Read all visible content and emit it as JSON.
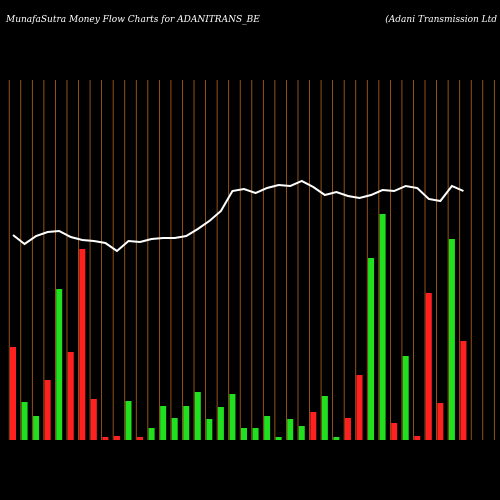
{
  "chart_data": {
    "type": "bar",
    "title": "MunafaSutra  Money Flow  Charts for ADANITRANS_BE",
    "subtitle": "(Adani Transmission Ltd",
    "categories": [
      null,
      null,
      null,
      null,
      null,
      null,
      null,
      null,
      null,
      null,
      null,
      null,
      null,
      null,
      null,
      null,
      null,
      null,
      null,
      null,
      null,
      null,
      null,
      null,
      null,
      null,
      null,
      null,
      null,
      null,
      null,
      null,
      null,
      null,
      null,
      null,
      null,
      null,
      null,
      null
    ],
    "values": [
      93,
      38,
      24,
      60,
      151,
      88,
      191,
      41,
      3,
      4,
      39,
      3,
      12,
      34,
      22,
      34,
      48,
      21,
      33,
      46,
      12,
      12,
      24,
      3,
      21,
      14,
      28,
      44,
      3,
      22,
      65,
      182,
      226,
      17,
      84,
      4,
      147,
      37,
      201,
      99
    ],
    "colors": [
      "#ff2020",
      "#20e020",
      "#20e020",
      "#ff2020",
      "#20e020",
      "#ff2020",
      "#ff2020",
      "#ff2020",
      "#ff2020",
      "#ff2020",
      "#20e020",
      "#ff2020",
      "#20e020",
      "#20e020",
      "#20e020",
      "#20e020",
      "#20e020",
      "#20e020",
      "#20e020",
      "#20e020",
      "#20e020",
      "#20e020",
      "#20e020",
      "#20e020",
      "#20e020",
      "#20e020",
      "#ff2020",
      "#20e020",
      "#20e020",
      "#ff2020",
      "#ff2020",
      "#20e020",
      "#20e020",
      "#ff2020",
      "#20e020",
      "#ff2020",
      "#ff2020",
      "#ff2020",
      "#20e020",
      "#ff2020"
    ],
    "line": {
      "color": "#ffffff",
      "values": [
        205,
        196,
        204,
        208,
        209,
        203,
        200,
        199,
        197,
        189,
        199,
        198,
        201,
        202,
        202,
        204,
        211,
        219,
        229,
        249,
        251,
        247,
        252,
        255,
        254,
        259,
        253,
        245,
        248,
        244,
        242,
        245,
        250,
        249,
        254,
        252,
        241,
        239,
        254,
        249
      ]
    },
    "ylim": [
      0,
      440
    ],
    "grid_color": "#b5651d"
  }
}
